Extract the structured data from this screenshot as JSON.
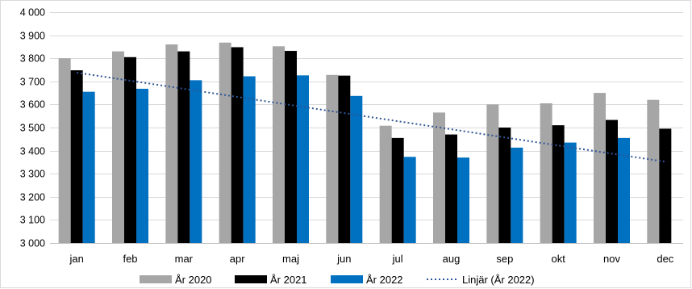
{
  "chart_data": {
    "type": "bar",
    "categories": [
      "jan",
      "feb",
      "mar",
      "apr",
      "maj",
      "jun",
      "jul",
      "aug",
      "sep",
      "okt",
      "nov",
      "dec"
    ],
    "series": [
      {
        "name": "År 2020",
        "color": "#a6a6a6",
        "values": [
          3800,
          3830,
          3860,
          3868,
          3852,
          3728,
          3508,
          3565,
          3600,
          3605,
          3650,
          3620
        ]
      },
      {
        "name": "År 2021",
        "color": "#000000",
        "values": [
          3748,
          3805,
          3830,
          3848,
          3832,
          3725,
          3455,
          3470,
          3500,
          3510,
          3533,
          3495
        ]
      },
      {
        "name": "År 2022",
        "color": "#0070c0",
        "values": [
          3655,
          3668,
          3705,
          3722,
          3726,
          3637,
          3373,
          3370,
          3413,
          3435,
          3455,
          null
        ]
      }
    ],
    "trendline": {
      "name": "Linjär (År 2022)",
      "of_series": "År 2022",
      "type": "linear",
      "color": "#2f5597",
      "style": "dotted",
      "start_value": 3738,
      "end_value": 3352
    },
    "ylim": [
      3000,
      4000
    ],
    "yticks": [
      3000,
      3100,
      3200,
      3300,
      3400,
      3500,
      3600,
      3700,
      3800,
      3900,
      4000
    ],
    "ytick_labels": [
      "3 000",
      "3 100",
      "3 200",
      "3 300",
      "3 400",
      "3 500",
      "3 600",
      "3 700",
      "3 800",
      "3 900",
      "4 000"
    ],
    "title": "",
    "xlabel": "",
    "ylabel": "",
    "grid": true,
    "gridline_color": "#d9d9d9",
    "legend_position": "bottom"
  }
}
